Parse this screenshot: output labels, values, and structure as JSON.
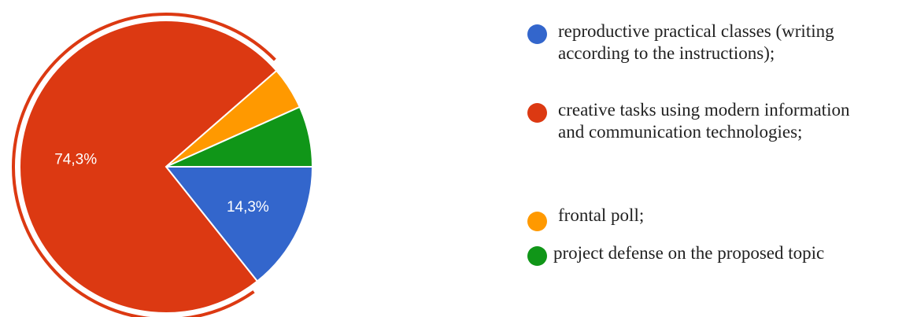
{
  "chart_data": {
    "type": "pie",
    "title": "",
    "slices": [
      {
        "label": "reproductive practical classes (writing\naccording to the instructions);",
        "value": 14.3,
        "display": "14,3%",
        "color": "#3366cc"
      },
      {
        "label": "creative tasks using modern information\nand communication technologies;",
        "value": 74.3,
        "display": "74,3%",
        "color": "#dc3912",
        "exploded": true
      },
      {
        "label": "frontal poll;",
        "value": 4.7,
        "display": "",
        "color": "#ff9900"
      },
      {
        "label": "project defense on the proposed topic",
        "value": 6.7,
        "display": "",
        "color": "#109618"
      }
    ],
    "legend_position": "right"
  }
}
